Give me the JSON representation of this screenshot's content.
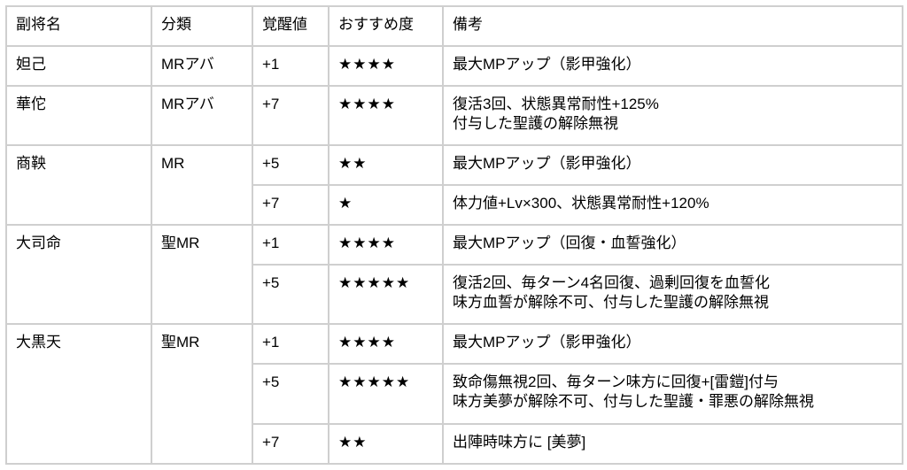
{
  "header": {
    "name": "副将名",
    "category": "分類",
    "awaken": "覚醒値",
    "rating": "おすすめ度",
    "notes": "備考"
  },
  "groups": [
    {
      "name": "妲己",
      "category": "MRアバ",
      "rows": [
        {
          "awaken": "+1",
          "stars": "★★★★",
          "note1": "最大MPアップ（影甲強化）"
        }
      ]
    },
    {
      "name": "華佗",
      "category": "MRアバ",
      "rows": [
        {
          "awaken": "+7",
          "stars": "★★★★",
          "note1": "復活3回、状態異常耐性+125%",
          "note2": "付与した聖護の解除無視"
        }
      ]
    },
    {
      "name": "商鞅",
      "category": "MR",
      "rows": [
        {
          "awaken": "+5",
          "stars": "★★",
          "note1": "最大MPアップ（影甲強化）"
        },
        {
          "awaken": "+7",
          "stars": "★",
          "note1": "体力値+Lv×300、状態異常耐性+120%"
        }
      ]
    },
    {
      "name": "大司命",
      "category": "聖MR",
      "rows": [
        {
          "awaken": "+1",
          "stars": "★★★★",
          "note1": "最大MPアップ（回復・血誓強化）"
        },
        {
          "awaken": "+5",
          "stars": "★★★★★",
          "note1": "復活2回、毎ターン4名回復、過剰回復を血誓化",
          "note2": "味方血誓が解除不可、付与した聖護の解除無視"
        }
      ]
    },
    {
      "name": "大黒天",
      "category": "聖MR",
      "rows": [
        {
          "awaken": "+1",
          "stars": "★★★★",
          "note1": "最大MPアップ（影甲強化）"
        },
        {
          "awaken": "+5",
          "stars": "★★★★★",
          "note1": "致命傷無視2回、毎ターン味方に回復+[雷鎧]付与",
          "note2": "味方美夢が解除不可、付与した聖護・罪悪の解除無視"
        },
        {
          "awaken": "+7",
          "stars": "★★",
          "note1": "出陣時味方に [美夢]"
        }
      ]
    }
  ]
}
